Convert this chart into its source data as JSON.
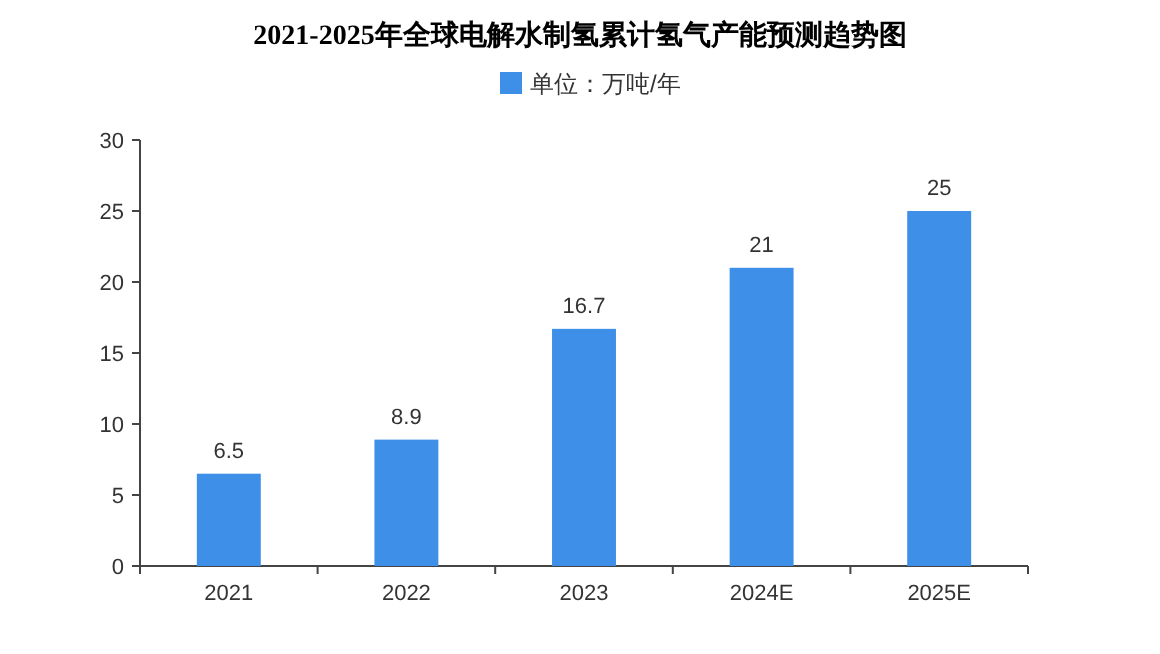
{
  "chart_data": {
    "type": "bar",
    "title": "2021-2025年全球电解水制氢累计氢气产能预测趋势图",
    "categories": [
      "2021",
      "2022",
      "2023",
      "2024E",
      "2025E"
    ],
    "series": [
      {
        "name": "单位：万吨/年",
        "color": "#3d8fe8",
        "values": [
          6.5,
          8.9,
          16.7,
          21,
          25
        ]
      }
    ],
    "ylim": [
      0,
      30
    ],
    "yticks": [
      0,
      5,
      10,
      15,
      20,
      25,
      30
    ],
    "data_labels": true,
    "legend": "top"
  }
}
